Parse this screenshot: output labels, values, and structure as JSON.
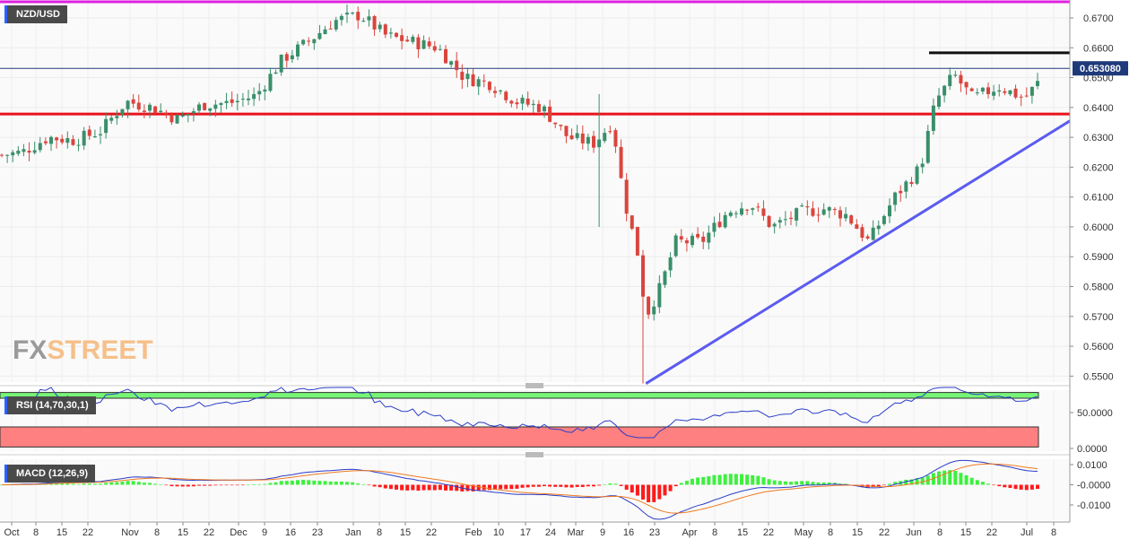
{
  "panels": {
    "price_title": "NZD/USD",
    "rsi_title": "RSI (14,70,30,1)",
    "macd_title": "MACD (12,26,9)",
    "watermark_a": "FX",
    "watermark_b": "STREET",
    "last_price_label": "0.653080"
  },
  "colors": {
    "up": "#3a8f6b",
    "down": "#d9453d",
    "support": "#e8121b",
    "trendline": "#5b5bf0",
    "resistance": "#111111",
    "top_line": "#e020e0",
    "last_price_line": "#1f3a7a",
    "rsi_line": "#2a3ec8",
    "rsi_overbought": "#76f576",
    "rsi_oversold": "#ff8080",
    "macd_line": "#2a3ec8",
    "signal_line": "#f07a20",
    "hist_pos": "#3ef03e",
    "hist_neg": "#ff1a1a"
  },
  "chart_data": [
    {
      "type": "candlestick",
      "title": "NZD/USD",
      "ylim": [
        0.548,
        0.676
      ],
      "y_ticks": [
        "0.6700",
        "0.6600",
        "0.6500",
        "0.6400",
        "0.6300",
        "0.6200",
        "0.6100",
        "0.6000",
        "0.5900",
        "0.5800",
        "0.5700",
        "0.5600",
        "0.5500"
      ],
      "x_ticks": [
        "Oct",
        "8",
        "15",
        "22",
        "Nov",
        "8",
        "15",
        "22",
        "Dec",
        "9",
        "16",
        "23",
        "Jan",
        "8",
        "15",
        "22",
        "Feb",
        "10",
        "17",
        "24",
        "Mar",
        "9",
        "16",
        "23",
        "Apr",
        "8",
        "15",
        "22",
        "May",
        "8",
        "15",
        "22",
        "Jun",
        "8",
        "15",
        "22",
        "Jul",
        "8"
      ],
      "last_price": 0.6531,
      "support_level": 0.6378,
      "resistance_level": 0.6583,
      "trendline": {
        "from": {
          "x": "Mar 19",
          "y": 0.5475
        },
        "to": {
          "x": "Jul 10",
          "y": 0.6355
        }
      },
      "close_path": [
        [
          "Sep 26",
          0.624
        ],
        [
          "Oct 3",
          0.625
        ],
        [
          "Oct 10",
          0.63
        ],
        [
          "Oct 17",
          0.629
        ],
        [
          "Oct 24",
          0.632
        ],
        [
          "Oct 31",
          0.642
        ],
        [
          "Nov 7",
          0.64
        ],
        [
          "Nov 14",
          0.636
        ],
        [
          "Nov 21",
          0.641
        ],
        [
          "Nov 28",
          0.6415
        ],
        [
          "Dec 5",
          0.644
        ],
        [
          "Dec 12",
          0.656
        ],
        [
          "Dec 19",
          0.662
        ],
        [
          "Dec 26",
          0.669
        ],
        [
          "Jan 2",
          0.671
        ],
        [
          "Jan 9",
          0.664
        ],
        [
          "Jan 16",
          0.662
        ],
        [
          "Jan 23",
          0.66
        ],
        [
          "Jan 30",
          0.65
        ],
        [
          "Feb 6",
          0.648
        ],
        [
          "Feb 13",
          0.642
        ],
        [
          "Feb 20",
          0.64
        ],
        [
          "Feb 27",
          0.63
        ],
        [
          "Mar 5",
          0.628
        ],
        [
          "Mar 10",
          0.635
        ],
        [
          "Mar 13",
          0.61
        ],
        [
          "Mar 17",
          0.59
        ],
        [
          "Mar 19",
          0.57
        ],
        [
          "Mar 23",
          0.58
        ],
        [
          "Mar 27",
          0.595
        ],
        [
          "Apr 3",
          0.595
        ],
        [
          "Apr 10",
          0.605
        ],
        [
          "Apr 16",
          0.608
        ],
        [
          "Apr 22",
          0.6
        ],
        [
          "Apr 30",
          0.605
        ],
        [
          "May 6",
          0.606
        ],
        [
          "May 12",
          0.604
        ],
        [
          "May 18",
          0.595
        ],
        [
          "May 25",
          0.61
        ],
        [
          "Jun 1",
          0.62
        ],
        [
          "Jun 5",
          0.642
        ],
        [
          "Jun 10",
          0.651
        ],
        [
          "Jun 15",
          0.643
        ],
        [
          "Jun 22",
          0.647
        ],
        [
          "Jun 29",
          0.643
        ],
        [
          "Jul 6",
          0.6531
        ]
      ]
    },
    {
      "type": "line",
      "title": "RSI (14,70,30,1)",
      "ylim": [
        0,
        100
      ],
      "y_ticks": [
        "50.0000",
        "0.0000"
      ],
      "overbought": 70,
      "oversold": 30
    },
    {
      "type": "line",
      "title": "MACD (12,26,9)",
      "ylim": [
        -0.0115,
        0.0115
      ],
      "y_ticks": [
        "0.0100",
        "-0.0000",
        "-0.0100"
      ],
      "series": [
        {
          "key": "macd"
        },
        {
          "key": "signal"
        },
        {
          "key": "histogram"
        }
      ]
    }
  ]
}
